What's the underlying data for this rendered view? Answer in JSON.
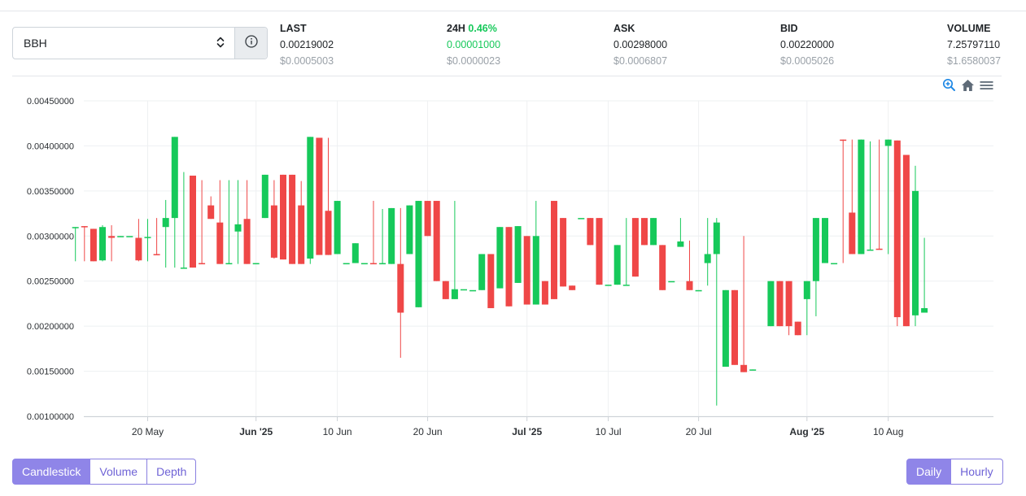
{
  "market": {
    "selected": "BBH"
  },
  "stats": {
    "last": {
      "label": "LAST",
      "value": "0.00219002",
      "usd": "$0.0005003"
    },
    "change": {
      "label": "24H",
      "pct": "0.46%",
      "value": "0.00001000",
      "usd": "$0.0000023"
    },
    "ask": {
      "label": "ASK",
      "value": "0.00298000",
      "usd": "$0.0006807"
    },
    "bid": {
      "label": "BID",
      "value": "0.00220000",
      "usd": "$0.0005026"
    },
    "volume": {
      "label": "VOLUME",
      "value": "7.25797110",
      "usd": "$1.6580037"
    }
  },
  "toolbar": {
    "icons": [
      "zoom-in-icon",
      "home-icon",
      "menu-icon"
    ]
  },
  "colors": {
    "up": "#16c95a",
    "down": "#ef4747",
    "accent": "#8f85e8"
  },
  "chart_view_buttons": [
    "Candlestick",
    "Volume",
    "Depth"
  ],
  "active_view": "Candlestick",
  "interval_buttons": [
    "Daily",
    "Hourly"
  ],
  "active_interval": "Daily",
  "chart_data": {
    "type": "candlestick",
    "x_start": "2025-05-11",
    "x_end": "2025-08-13",
    "ylim": [
      0.001,
      0.0045
    ],
    "y_ticks": [
      "0.00100000",
      "0.00150000",
      "0.00200000",
      "0.00250000",
      "0.00300000",
      "0.00350000",
      "0.00400000",
      "0.00450000"
    ],
    "x_ticks": [
      {
        "date": "2025-05-20",
        "label": "20 May",
        "bold": false
      },
      {
        "date": "2025-06-01",
        "label": "Jun '25",
        "bold": true
      },
      {
        "date": "2025-06-10",
        "label": "10 Jun",
        "bold": false
      },
      {
        "date": "2025-06-20",
        "label": "20 Jun",
        "bold": false
      },
      {
        "date": "2025-07-01",
        "label": "Jul '25",
        "bold": true
      },
      {
        "date": "2025-07-10",
        "label": "10 Jul",
        "bold": false
      },
      {
        "date": "2025-07-20",
        "label": "20 Jul",
        "bold": false
      },
      {
        "date": "2025-08-01",
        "label": "Aug '25",
        "bold": true
      },
      {
        "date": "2025-08-10",
        "label": "10 Aug",
        "bold": false
      }
    ],
    "candles": [
      {
        "date": "2025-05-12",
        "open": 0.0031,
        "high": 0.0031,
        "low": 0.00272,
        "close": 0.0031
      },
      {
        "date": "2025-05-13",
        "open": 0.00311,
        "high": 0.00311,
        "low": 0.00272,
        "close": 0.0031
      },
      {
        "date": "2025-05-14",
        "open": 0.00308,
        "high": 0.00308,
        "low": 0.00272,
        "close": 0.00272
      },
      {
        "date": "2025-05-15",
        "open": 0.00273,
        "high": 0.00312,
        "low": 0.00272,
        "close": 0.0031
      },
      {
        "date": "2025-05-16",
        "open": 0.003,
        "high": 0.00312,
        "low": 0.00272,
        "close": 0.00298
      },
      {
        "date": "2025-05-17",
        "open": 0.00299,
        "high": 0.003,
        "low": 0.00299,
        "close": 0.003
      },
      {
        "date": "2025-05-18",
        "open": 0.003,
        "high": 0.003,
        "low": 0.003,
        "close": 0.003
      },
      {
        "date": "2025-05-19",
        "open": 0.00298,
        "high": 0.00319,
        "low": 0.00272,
        "close": 0.00273
      },
      {
        "date": "2025-05-20",
        "open": 0.00299,
        "high": 0.00319,
        "low": 0.00272,
        "close": 0.00299
      },
      {
        "date": "2025-05-21",
        "open": 0.0028,
        "high": 0.0032,
        "low": 0.0028,
        "close": 0.00279
      },
      {
        "date": "2025-05-22",
        "open": 0.0031,
        "high": 0.0034,
        "low": 0.00265,
        "close": 0.0032
      },
      {
        "date": "2025-05-23",
        "open": 0.0032,
        "high": 0.0041,
        "low": 0.00265,
        "close": 0.0041
      },
      {
        "date": "2025-05-24",
        "open": 0.00265,
        "high": 0.00371,
        "low": 0.00265,
        "close": 0.00265
      },
      {
        "date": "2025-05-25",
        "open": 0.00367,
        "high": 0.00367,
        "low": 0.00265,
        "close": 0.00265
      },
      {
        "date": "2025-05-26",
        "open": 0.0027,
        "high": 0.00362,
        "low": 0.0027,
        "close": 0.00269
      },
      {
        "date": "2025-05-27",
        "open": 0.00334,
        "high": 0.00344,
        "low": 0.00319,
        "close": 0.00319
      },
      {
        "date": "2025-05-28",
        "open": 0.00315,
        "high": 0.00362,
        "low": 0.00269,
        "close": 0.00269
      },
      {
        "date": "2025-05-29",
        "open": 0.00269,
        "high": 0.00362,
        "low": 0.00269,
        "close": 0.0027
      },
      {
        "date": "2025-05-30",
        "open": 0.00305,
        "high": 0.00362,
        "low": 0.00269,
        "close": 0.00313
      },
      {
        "date": "2025-05-31",
        "open": 0.00319,
        "high": 0.00362,
        "low": 0.00269,
        "close": 0.00269
      },
      {
        "date": "2025-06-01",
        "open": 0.00269,
        "high": 0.00269,
        "low": 0.00269,
        "close": 0.0027
      },
      {
        "date": "2025-06-02",
        "open": 0.0032,
        "high": 0.00368,
        "low": 0.0032,
        "close": 0.00368
      },
      {
        "date": "2025-06-03",
        "open": 0.00334,
        "high": 0.00362,
        "low": 0.00275,
        "close": 0.00276
      },
      {
        "date": "2025-06-04",
        "open": 0.00368,
        "high": 0.00368,
        "low": 0.00274,
        "close": 0.00274
      },
      {
        "date": "2025-06-05",
        "open": 0.00368,
        "high": 0.00368,
        "low": 0.00269,
        "close": 0.00269
      },
      {
        "date": "2025-06-06",
        "open": 0.00334,
        "high": 0.00361,
        "low": 0.00269,
        "close": 0.00269
      },
      {
        "date": "2025-06-07",
        "open": 0.00275,
        "high": 0.0041,
        "low": 0.00269,
        "close": 0.0041
      },
      {
        "date": "2025-06-08",
        "open": 0.00409,
        "high": 0.00409,
        "low": 0.0028,
        "close": 0.00279
      },
      {
        "date": "2025-06-09",
        "open": 0.00328,
        "high": 0.00409,
        "low": 0.00279,
        "close": 0.00279
      },
      {
        "date": "2025-06-10",
        "open": 0.0028,
        "high": 0.00339,
        "low": 0.0028,
        "close": 0.00339
      },
      {
        "date": "2025-06-11",
        "open": 0.00269,
        "high": 0.00269,
        "low": 0.00269,
        "close": 0.0027
      },
      {
        "date": "2025-06-12",
        "open": 0.0027,
        "high": 0.00292,
        "low": 0.0027,
        "close": 0.00292
      },
      {
        "date": "2025-06-13",
        "open": 0.0027,
        "high": 0.0027,
        "low": 0.0027,
        "close": 0.0027
      },
      {
        "date": "2025-06-14",
        "open": 0.0027,
        "high": 0.00339,
        "low": 0.0027,
        "close": 0.00269
      },
      {
        "date": "2025-06-15",
        "open": 0.00269,
        "high": 0.0033,
        "low": 0.00269,
        "close": 0.0027
      },
      {
        "date": "2025-06-16",
        "open": 0.00269,
        "high": 0.00331,
        "low": 0.00269,
        "close": 0.00331
      },
      {
        "date": "2025-06-17",
        "open": 0.00269,
        "high": 0.00331,
        "low": 0.00165,
        "close": 0.00215
      },
      {
        "date": "2025-06-18",
        "open": 0.0028,
        "high": 0.00334,
        "low": 0.0028,
        "close": 0.00334
      },
      {
        "date": "2025-06-19",
        "open": 0.00221,
        "high": 0.00339,
        "low": 0.00221,
        "close": 0.00339
      },
      {
        "date": "2025-06-20",
        "open": 0.00339,
        "high": 0.00339,
        "low": 0.003,
        "close": 0.003
      },
      {
        "date": "2025-06-21",
        "open": 0.00339,
        "high": 0.00339,
        "low": 0.0025,
        "close": 0.0025
      },
      {
        "date": "2025-06-22",
        "open": 0.0025,
        "high": 0.0025,
        "low": 0.0023,
        "close": 0.0023
      },
      {
        "date": "2025-06-23",
        "open": 0.0023,
        "high": 0.00339,
        "low": 0.0023,
        "close": 0.00241
      },
      {
        "date": "2025-06-24",
        "open": 0.00241,
        "high": 0.00241,
        "low": 0.00241,
        "close": 0.00241
      },
      {
        "date": "2025-06-25",
        "open": 0.0024,
        "high": 0.0024,
        "low": 0.0024,
        "close": 0.0024
      },
      {
        "date": "2025-06-26",
        "open": 0.0024,
        "high": 0.0028,
        "low": 0.0024,
        "close": 0.0028
      },
      {
        "date": "2025-06-27",
        "open": 0.0028,
        "high": 0.0028,
        "low": 0.0022,
        "close": 0.0022
      },
      {
        "date": "2025-06-28",
        "open": 0.00242,
        "high": 0.0031,
        "low": 0.00242,
        "close": 0.0031
      },
      {
        "date": "2025-06-29",
        "open": 0.0031,
        "high": 0.0031,
        "low": 0.00222,
        "close": 0.00222
      },
      {
        "date": "2025-06-30",
        "open": 0.00248,
        "high": 0.00311,
        "low": 0.00248,
        "close": 0.00311
      },
      {
        "date": "2025-07-01",
        "open": 0.003,
        "high": 0.003,
        "low": 0.00224,
        "close": 0.00224
      },
      {
        "date": "2025-07-02",
        "open": 0.00224,
        "high": 0.00339,
        "low": 0.00224,
        "close": 0.003
      },
      {
        "date": "2025-07-03",
        "open": 0.0025,
        "high": 0.0025,
        "low": 0.00224,
        "close": 0.00224
      },
      {
        "date": "2025-07-04",
        "open": 0.00339,
        "high": 0.00339,
        "low": 0.0023,
        "close": 0.0023
      },
      {
        "date": "2025-07-05",
        "open": 0.0032,
        "high": 0.0032,
        "low": 0.00244,
        "close": 0.00244
      },
      {
        "date": "2025-07-06",
        "open": 0.00245,
        "high": 0.00245,
        "low": 0.0024,
        "close": 0.0024
      },
      {
        "date": "2025-07-07",
        "open": 0.0032,
        "high": 0.0032,
        "low": 0.0032,
        "close": 0.0032
      },
      {
        "date": "2025-07-08",
        "open": 0.0032,
        "high": 0.0032,
        "low": 0.0029,
        "close": 0.0029
      },
      {
        "date": "2025-07-09",
        "open": 0.0032,
        "high": 0.0032,
        "low": 0.00246,
        "close": 0.00246
      },
      {
        "date": "2025-07-10",
        "open": 0.00246,
        "high": 0.00246,
        "low": 0.00246,
        "close": 0.00246
      },
      {
        "date": "2025-07-11",
        "open": 0.00246,
        "high": 0.0029,
        "low": 0.00246,
        "close": 0.0029
      },
      {
        "date": "2025-07-12",
        "open": 0.00246,
        "high": 0.0032,
        "low": 0.00246,
        "close": 0.00246
      },
      {
        "date": "2025-07-13",
        "open": 0.0032,
        "high": 0.0032,
        "low": 0.00255,
        "close": 0.00255
      },
      {
        "date": "2025-07-14",
        "open": 0.0032,
        "high": 0.0032,
        "low": 0.0029,
        "close": 0.0029
      },
      {
        "date": "2025-07-15",
        "open": 0.0029,
        "high": 0.0032,
        "low": 0.0029,
        "close": 0.0032
      },
      {
        "date": "2025-07-16",
        "open": 0.0029,
        "high": 0.0029,
        "low": 0.0024,
        "close": 0.0024
      },
      {
        "date": "2025-07-17",
        "open": 0.0025,
        "high": 0.0025,
        "low": 0.0025,
        "close": 0.0025
      },
      {
        "date": "2025-07-18",
        "open": 0.00288,
        "high": 0.0032,
        "low": 0.00288,
        "close": 0.00294
      },
      {
        "date": "2025-07-19",
        "open": 0.0025,
        "high": 0.00295,
        "low": 0.0024,
        "close": 0.0024
      },
      {
        "date": "2025-07-20",
        "open": 0.0024,
        "high": 0.0024,
        "low": 0.0024,
        "close": 0.0024
      },
      {
        "date": "2025-07-21",
        "open": 0.0027,
        "high": 0.0032,
        "low": 0.00245,
        "close": 0.0028
      },
      {
        "date": "2025-07-22",
        "open": 0.0028,
        "high": 0.0032,
        "low": 0.00112,
        "close": 0.00315
      },
      {
        "date": "2025-07-23",
        "open": 0.00155,
        "high": 0.0024,
        "low": 0.00155,
        "close": 0.0024
      },
      {
        "date": "2025-07-24",
        "open": 0.0024,
        "high": 0.0024,
        "low": 0.00157,
        "close": 0.00157
      },
      {
        "date": "2025-07-25",
        "open": 0.00157,
        "high": 0.003,
        "low": 0.00149,
        "close": 0.00149
      },
      {
        "date": "2025-07-26",
        "open": 0.00151,
        "high": 0.00152,
        "low": 0.00151,
        "close": 0.00152
      },
      {
        "date": "2025-07-28",
        "open": 0.002,
        "high": 0.0025,
        "low": 0.002,
        "close": 0.0025
      },
      {
        "date": "2025-07-29",
        "open": 0.0025,
        "high": 0.0025,
        "low": 0.002,
        "close": 0.002
      },
      {
        "date": "2025-07-30",
        "open": 0.0025,
        "high": 0.0025,
        "low": 0.0019,
        "close": 0.002
      },
      {
        "date": "2025-07-31",
        "open": 0.00205,
        "high": 0.00205,
        "low": 0.0019,
        "close": 0.0019
      },
      {
        "date": "2025-08-01",
        "open": 0.0023,
        "high": 0.0025,
        "low": 0.0019,
        "close": 0.0025
      },
      {
        "date": "2025-08-02",
        "open": 0.0025,
        "high": 0.0032,
        "low": 0.00211,
        "close": 0.0032
      },
      {
        "date": "2025-08-03",
        "open": 0.0027,
        "high": 0.0032,
        "low": 0.0027,
        "close": 0.0032
      },
      {
        "date": "2025-08-04",
        "open": 0.0027,
        "high": 0.0027,
        "low": 0.0027,
        "close": 0.0027
      },
      {
        "date": "2025-08-05",
        "open": 0.00407,
        "high": 0.00407,
        "low": 0.0027,
        "close": 0.00406
      },
      {
        "date": "2025-08-06",
        "open": 0.00326,
        "high": 0.00407,
        "low": 0.0028,
        "close": 0.0028
      },
      {
        "date": "2025-08-07",
        "open": 0.0028,
        "high": 0.00407,
        "low": 0.0028,
        "close": 0.00407
      },
      {
        "date": "2025-08-08",
        "open": 0.00285,
        "high": 0.00405,
        "low": 0.00285,
        "close": 0.00285
      },
      {
        "date": "2025-08-09",
        "open": 0.00286,
        "high": 0.00407,
        "low": 0.00285,
        "close": 0.00285
      },
      {
        "date": "2025-08-10",
        "open": 0.004,
        "high": 0.00407,
        "low": 0.0028,
        "close": 0.00407
      },
      {
        "date": "2025-08-11",
        "open": 0.00406,
        "high": 0.00406,
        "low": 0.002,
        "close": 0.0021
      },
      {
        "date": "2025-08-12",
        "open": 0.0039,
        "high": 0.0039,
        "low": 0.002,
        "close": 0.002
      },
      {
        "date": "2025-08-13",
        "open": 0.00212,
        "high": 0.00378,
        "low": 0.002,
        "close": 0.0035
      },
      {
        "date": "2025-08-14",
        "open": 0.00215,
        "high": 0.00298,
        "low": 0.00215,
        "close": 0.0022
      }
    ]
  }
}
